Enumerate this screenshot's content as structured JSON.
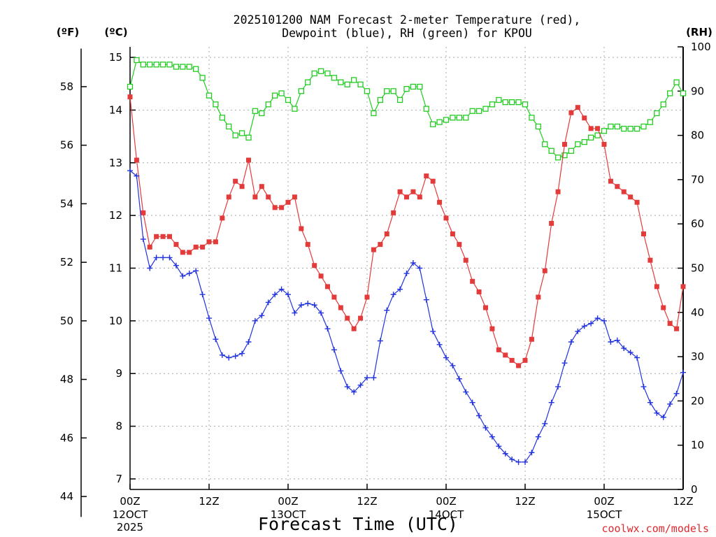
{
  "chart_data": {
    "type": "line",
    "title_line1": "2025101200 NAM Forecast 2-meter Temperature (red),",
    "title_line2": "Dewpoint (blue), RH (green) for KPOU",
    "xlabel": "Forecast Time (UTC)",
    "credit": "coolwx.com/models",
    "units": {
      "f": "(ºF)",
      "c": "(ºC)",
      "rh": "(RH)"
    },
    "x_ticks": [
      {
        "h": 0,
        "top": "00Z",
        "mid": "12OCT",
        "bot": "2025"
      },
      {
        "h": 12,
        "top": "12Z"
      },
      {
        "h": 24,
        "top": "00Z",
        "mid": "13OCT"
      },
      {
        "h": 36,
        "top": "12Z"
      },
      {
        "h": 48,
        "top": "00Z",
        "mid": "14OCT"
      },
      {
        "h": 60,
        "top": "12Z"
      },
      {
        "h": 72,
        "top": "00Z",
        "mid": "15OCT"
      },
      {
        "h": 84,
        "top": "12Z"
      }
    ],
    "xlim": [
      0,
      84
    ],
    "c_ylim": [
      6.8,
      15.2
    ],
    "c_ticks": [
      "7",
      "8",
      "9",
      "10",
      "11",
      "12",
      "13",
      "14",
      "15"
    ],
    "f_ticks": [
      "44",
      "46",
      "48",
      "50",
      "52",
      "54",
      "56",
      "58"
    ],
    "rh_ylim": [
      0,
      100
    ],
    "rh_ticks": [
      "0",
      "10",
      "20",
      "30",
      "40",
      "50",
      "60",
      "70",
      "80",
      "90",
      "100"
    ],
    "colors": {
      "temp": "#e33a3a",
      "dew": "#2233dd",
      "rh": "#22cc22"
    },
    "series": [
      {
        "name": "Temperature",
        "units": "C",
        "values": [
          14.25,
          13.05,
          12.05,
          11.4,
          11.6,
          11.6,
          11.6,
          11.45,
          11.3,
          11.3,
          11.4,
          11.4,
          11.5,
          11.5,
          11.95,
          12.35,
          12.65,
          12.55,
          13.05,
          12.35,
          12.55,
          12.35,
          12.15,
          12.15,
          12.25,
          12.35,
          11.75,
          11.45,
          11.05,
          10.85,
          10.65,
          10.45,
          10.25,
          10.05,
          9.85,
          10.05,
          10.45,
          11.35,
          11.45,
          11.65,
          12.05,
          12.45,
          12.35,
          12.45,
          12.35,
          12.75,
          12.65,
          12.25,
          11.95,
          11.65,
          11.45,
          11.15,
          10.75,
          10.55,
          10.25,
          9.85,
          9.45,
          9.35,
          9.25,
          9.15,
          9.25,
          9.65,
          10.45,
          10.95,
          11.85,
          12.45,
          13.35,
          13.95,
          14.05,
          13.85,
          13.65,
          13.65,
          13.35,
          12.65,
          12.55,
          12.45,
          12.35,
          12.25,
          11.65,
          11.15,
          10.65,
          10.25,
          9.95,
          9.85,
          10.65
        ]
      },
      {
        "name": "Dewpoint",
        "units": "C",
        "values": [
          12.85,
          12.75,
          11.55,
          11.0,
          11.2,
          11.2,
          11.2,
          11.05,
          10.85,
          10.9,
          10.95,
          10.5,
          10.05,
          9.65,
          9.35,
          9.3,
          9.33,
          9.38,
          9.6,
          10.0,
          10.1,
          10.35,
          10.5,
          10.6,
          10.5,
          10.15,
          10.3,
          10.33,
          10.3,
          10.15,
          9.85,
          9.45,
          9.05,
          8.75,
          8.65,
          8.78,
          8.92,
          8.92,
          9.62,
          10.2,
          10.5,
          10.6,
          10.9,
          11.1,
          11.0,
          10.4,
          9.8,
          9.55,
          9.3,
          9.15,
          8.9,
          8.65,
          8.45,
          8.2,
          7.97,
          7.8,
          7.62,
          7.48,
          7.37,
          7.32,
          7.32,
          7.5,
          7.8,
          8.05,
          8.45,
          8.75,
          9.2,
          9.6,
          9.8,
          9.9,
          9.95,
          10.05,
          10.0,
          9.6,
          9.63,
          9.48,
          9.4,
          9.3,
          8.75,
          8.45,
          8.25,
          8.17,
          8.42,
          8.62,
          9.02
        ]
      },
      {
        "name": "RH",
        "units": "%",
        "values": [
          91,
          97,
          96,
          96,
          96,
          96,
          96,
          95.5,
          95.5,
          95.5,
          95,
          93,
          89,
          87,
          84,
          82,
          80,
          80.5,
          79.5,
          85.5,
          85,
          87,
          89,
          89.5,
          88,
          86,
          90,
          92,
          94,
          94.5,
          94,
          93,
          92,
          91.5,
          92.5,
          91.5,
          90,
          85,
          88,
          90,
          90,
          88,
          90.5,
          91,
          91,
          86,
          82.5,
          83,
          83.5,
          84,
          84,
          84,
          85.5,
          85.5,
          86,
          87,
          88,
          87.5,
          87.5,
          87.5,
          87,
          84,
          82,
          78,
          76.5,
          75,
          75.5,
          76.5,
          78,
          78.5,
          79.5,
          80,
          81,
          82,
          82,
          81.5,
          81.5,
          81.5,
          82,
          83,
          85,
          87,
          89.5,
          92,
          89.5
        ]
      }
    ]
  }
}
